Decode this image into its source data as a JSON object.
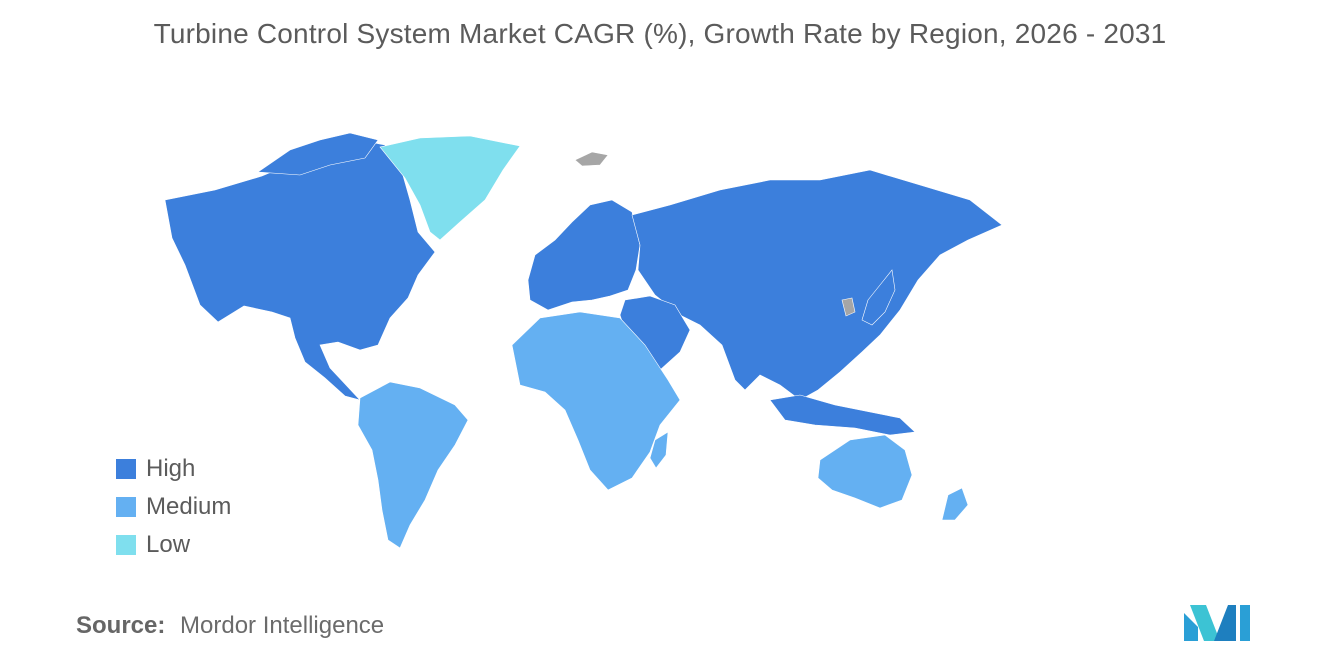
{
  "title": "Turbine Control System Market CAGR (%), Growth Rate by Region, 2026 - 2031",
  "legend": [
    {
      "label": "High",
      "color": "#3c7fdc"
    },
    {
      "label": "Medium",
      "color": "#64b0f2"
    },
    {
      "label": "Low",
      "color": "#7fdfee"
    }
  ],
  "no_data_color": "#a6a6a6",
  "regions": {
    "north_america": "High",
    "south_america": "Medium",
    "europe": "High",
    "asia_pacific_mainland": "High",
    "middle_east": "High",
    "africa": "Medium",
    "australia_new_zealand": "Medium",
    "greenland": "Low"
  },
  "source": {
    "label": "Source:",
    "value": "Mordor Intelligence"
  }
}
